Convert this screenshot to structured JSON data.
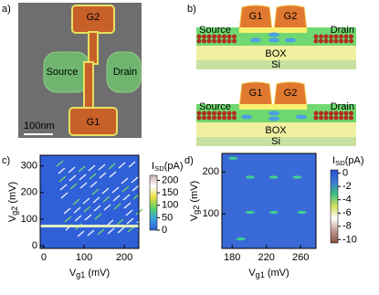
{
  "panels": {
    "a": {
      "label": "a)",
      "gate_top": "G2",
      "gate_bottom": "G1",
      "source": "Source",
      "drain": "Drain",
      "scale_bar": "100nm"
    },
    "b": {
      "label": "b)",
      "schematics": [
        {
          "g1": "G1",
          "g2": "G2",
          "source": "Source",
          "drain": "Drain",
          "box": "BOX",
          "si": "Si"
        },
        {
          "g1": "G1",
          "g2": "G2",
          "source": "Source",
          "drain": "Drain",
          "box": "BOX",
          "si": "Si"
        }
      ]
    }
  },
  "chart_data": [
    {
      "type": "heatmap",
      "panel_label": "c)",
      "x_label": {
        "main": "V",
        "sub": "g1",
        "unit": " (mV)"
      },
      "y_label": {
        "main": "V",
        "sub": "g2",
        "unit": " (mV)"
      },
      "xlim": [
        -9,
        236
      ],
      "xticks": [
        0,
        100,
        200
      ],
      "ylim": [
        -10,
        340
      ],
      "yticks": [
        0,
        100,
        200,
        300
      ],
      "colorbar": {
        "label": {
          "main": "I",
          "sub": "SD",
          "unit": "(pA)"
        },
        "lim": [
          0,
          220
        ],
        "ticks": [
          0,
          50,
          100,
          150,
          200
        ],
        "colors": [
          "#2f5fd0",
          "#3aa0e0",
          "#5cd06a",
          "#e8e040",
          "#ffffff",
          "#c8b0b0"
        ]
      }
    },
    {
      "type": "heatmap",
      "panel_label": "d)",
      "x_label": {
        "main": "V",
        "sub": "g1",
        "unit": " (mV)"
      },
      "y_label": {
        "main": "V",
        "sub": "g2",
        "unit": " (mV)"
      },
      "xlim": [
        168,
        278
      ],
      "xticks": [
        180,
        220,
        260
      ],
      "ylim": [
        18,
        244
      ],
      "yticks": [
        100,
        200
      ],
      "colorbar": {
        "label": {
          "main": "I",
          "sub": "SD",
          "unit": "(pA)"
        },
        "lim": [
          -10.5,
          0.5
        ],
        "ticks": [
          0,
          -2,
          -4,
          -6,
          -8,
          -10
        ],
        "colors": [
          "#8a5040",
          "#c09a90",
          "#ffffff",
          "#d8e060",
          "#40c080",
          "#3a7ad8",
          "#2850c8"
        ]
      }
    }
  ]
}
